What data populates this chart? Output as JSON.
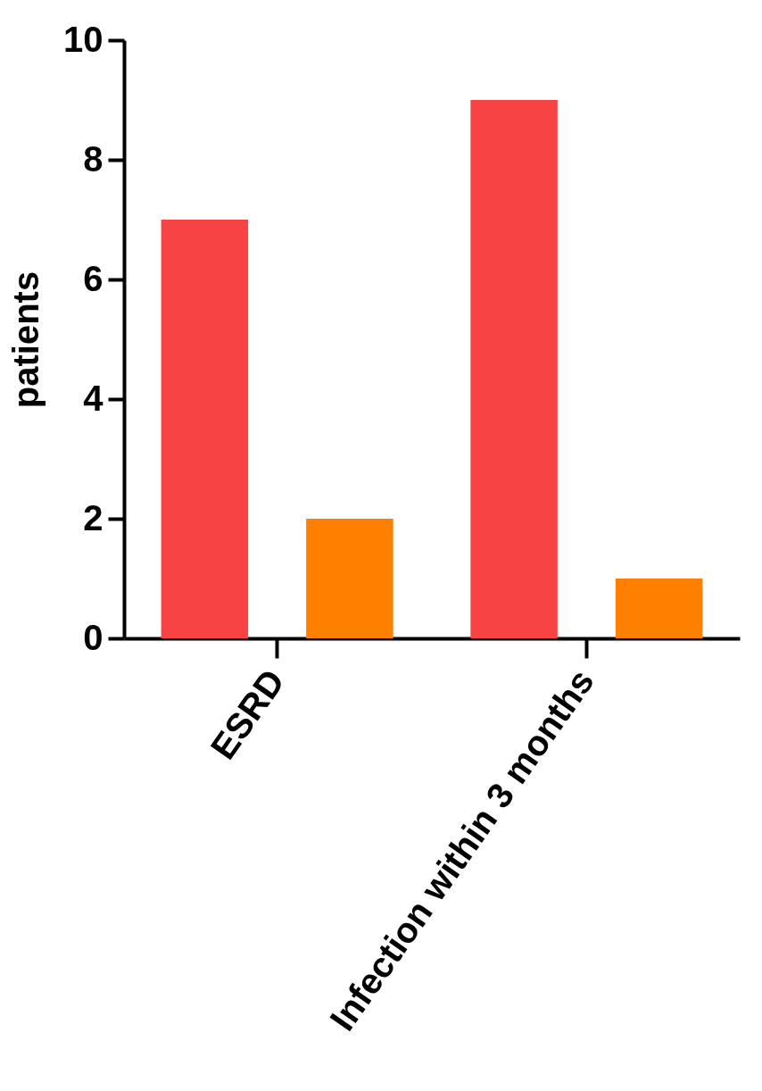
{
  "chart_data": {
    "type": "bar",
    "ylabel": "patients",
    "categories": [
      "ESRD",
      "Infection within 3 months"
    ],
    "series": [
      {
        "color": "#f74343",
        "values": [
          7,
          9
        ]
      },
      {
        "color": "#ff8000",
        "values": [
          2,
          1
        ]
      }
    ],
    "ylim": [
      0,
      10
    ],
    "yticks": [
      0,
      2,
      4,
      6,
      8,
      10
    ],
    "grid": false,
    "legend": false
  }
}
